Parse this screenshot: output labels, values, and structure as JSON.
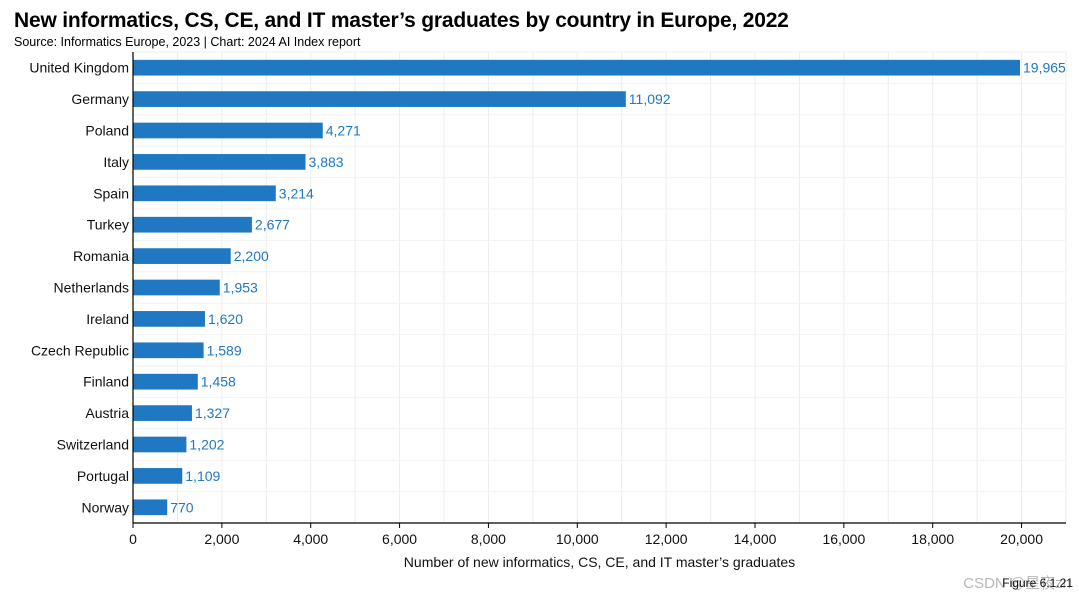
{
  "chart_data": {
    "type": "bar",
    "orientation": "horizontal",
    "title": "New informatics, CS, CE, and IT master’s graduates by country in Europe, 2022",
    "subtitle": "Source: Informatics Europe, 2023 | Chart: 2024 AI Index report",
    "categories": [
      "United Kingdom",
      "Germany",
      "Poland",
      "Italy",
      "Spain",
      "Turkey",
      "Romania",
      "Netherlands",
      "Ireland",
      "Czech Republic",
      "Finland",
      "Austria",
      "Switzerland",
      "Portugal",
      "Norway"
    ],
    "values": [
      19965,
      11092,
      4271,
      3883,
      3214,
      2677,
      2200,
      1953,
      1620,
      1589,
      1458,
      1327,
      1202,
      1109,
      770
    ],
    "value_labels": [
      "19,965",
      "11,092",
      "4,271",
      "3,883",
      "3,214",
      "2,677",
      "2,200",
      "1,953",
      "1,620",
      "1,589",
      "1,458",
      "1,327",
      "1,202",
      "1,109",
      "770"
    ],
    "xlabel": "Number of new informatics, CS, CE, and IT master’s graduates",
    "ylabel": "",
    "xlim": [
      0,
      21000
    ],
    "xticks": [
      0,
      2000,
      4000,
      6000,
      8000,
      10000,
      12000,
      14000,
      16000,
      18000,
      20000
    ],
    "xtick_labels": [
      "0",
      "2,000",
      "4,000",
      "6,000",
      "8,000",
      "10,000",
      "12,000",
      "14,000",
      "16,000",
      "18,000",
      "20,000"
    ],
    "grid": true,
    "bar_color": "#1f78c1",
    "label_color": "#1f78c1"
  },
  "figure_label": "Figure 6.1.21",
  "watermark": "CSDN @星夜zn"
}
